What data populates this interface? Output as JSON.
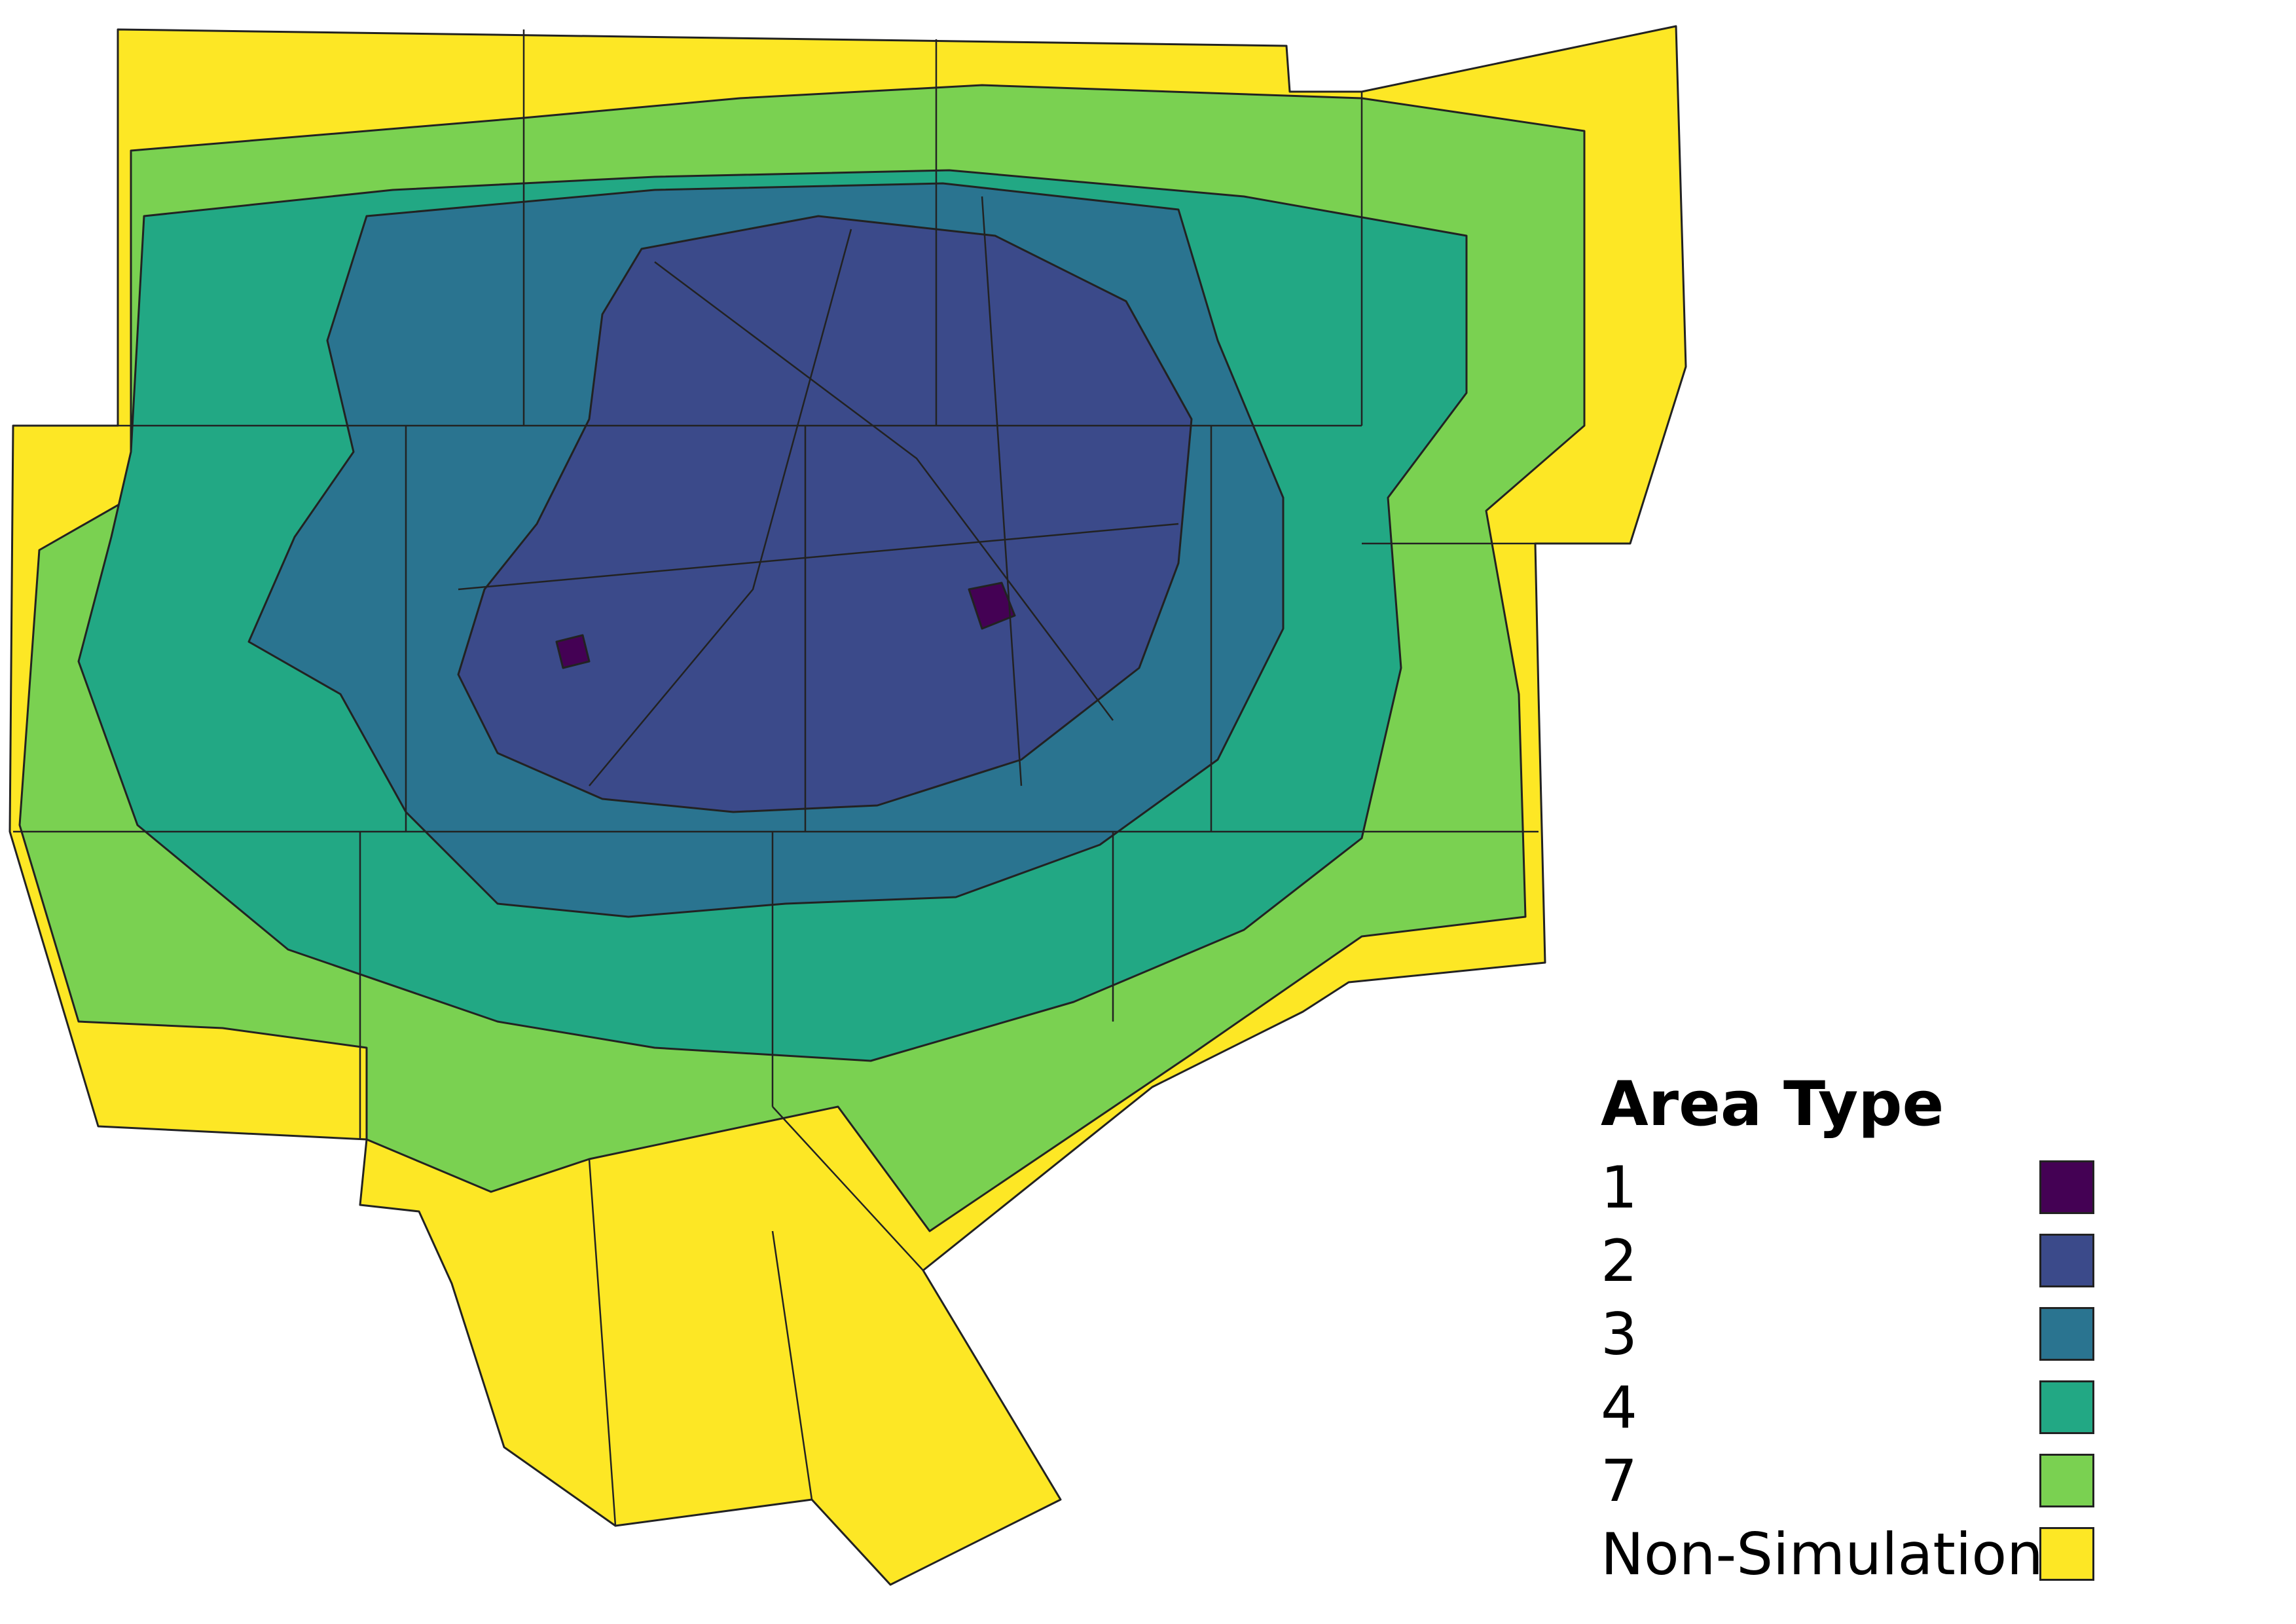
{
  "legend": {
    "title": "Area Type",
    "items": [
      {
        "label": "1",
        "color": "#440154"
      },
      {
        "label": "2",
        "color": "#3b4a8a"
      },
      {
        "label": "3",
        "color": "#2a7490"
      },
      {
        "label": "4",
        "color": "#22a884"
      },
      {
        "label": "7",
        "color": "#7ad151"
      },
      {
        "label": "Non-Simulation",
        "color": "#fde725"
      }
    ]
  },
  "map": {
    "outline_color": "#222222",
    "background": "#ffffff"
  }
}
